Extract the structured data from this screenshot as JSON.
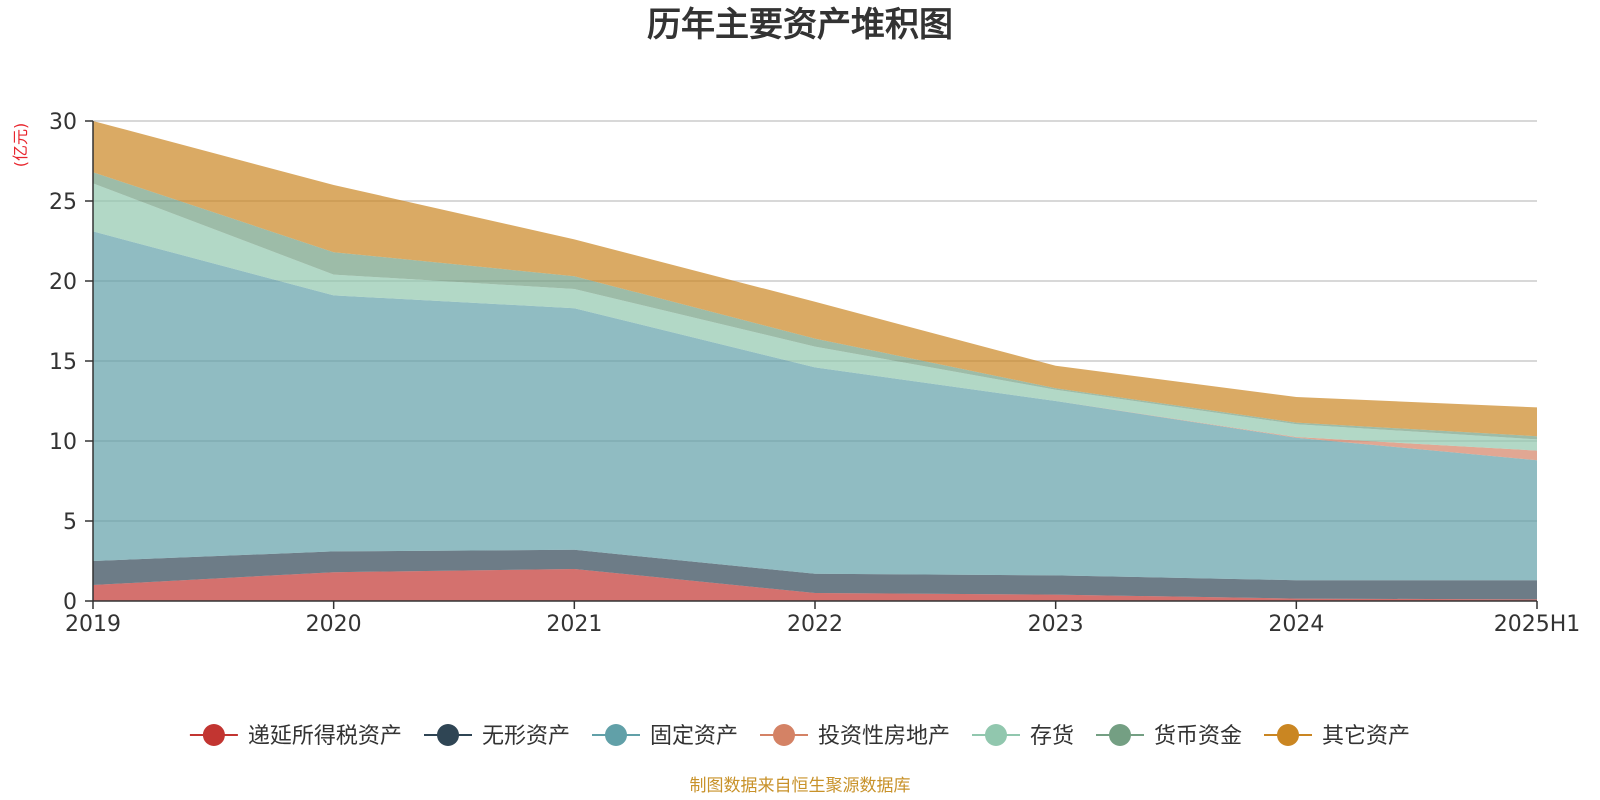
{
  "chart_data": {
    "type": "area",
    "stacked": true,
    "title": "历年主要资产堆积图",
    "unit_label": "(亿元)",
    "source": "制图数据来自恒生聚源数据库",
    "x": [
      "2019",
      "2020",
      "2021",
      "2022",
      "2023",
      "2024",
      "2025H1"
    ],
    "ylim": [
      0,
      30
    ],
    "yticks": [
      0,
      5,
      10,
      15,
      20,
      25,
      30
    ],
    "grid": true,
    "legend_position": "bottom",
    "series": [
      {
        "name": "递延所得税资产",
        "color": "#c23531",
        "values": [
          1.0,
          1.8,
          2.0,
          0.5,
          0.4,
          0.15,
          0.1
        ]
      },
      {
        "name": "无形资产",
        "color": "#2f4554",
        "values": [
          1.5,
          1.3,
          1.2,
          1.2,
          1.2,
          1.15,
          1.2
        ]
      },
      {
        "name": "固定资产",
        "color": "#61a0a8",
        "values": [
          20.6,
          16.0,
          15.1,
          12.9,
          10.9,
          8.9,
          7.5
        ]
      },
      {
        "name": "投资性房地产",
        "color": "#d48265",
        "values": [
          0,
          0,
          0,
          0,
          0,
          0.05,
          0.6
        ]
      },
      {
        "name": "存货",
        "color": "#91c7ae",
        "values": [
          3.0,
          1.3,
          1.2,
          1.3,
          0.7,
          0.8,
          0.7
        ]
      },
      {
        "name": "货币资金",
        "color": "#749f83",
        "values": [
          0.7,
          1.4,
          0.8,
          0.5,
          0.1,
          0.1,
          0.2
        ]
      },
      {
        "name": "其它资产",
        "color": "#ca8622",
        "values": [
          3.2,
          4.2,
          2.3,
          2.3,
          1.4,
          1.6,
          1.8
        ]
      }
    ]
  }
}
